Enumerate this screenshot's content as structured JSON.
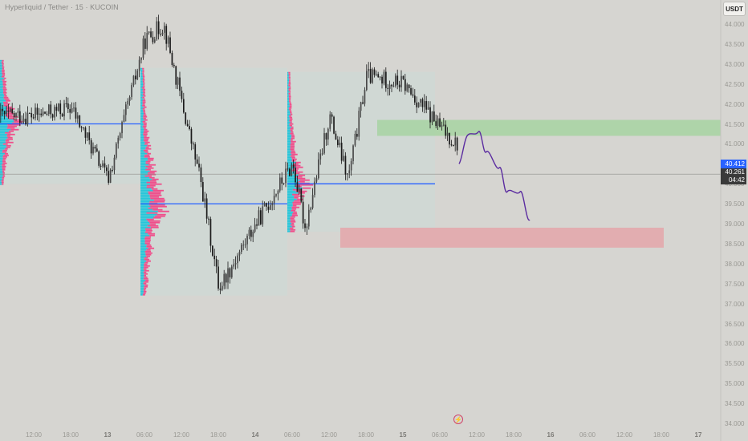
{
  "header": {
    "title": "Hyperliquid / Tether · 15 · KUCOIN",
    "currency_button": "USDT"
  },
  "price_axis": [
    "44.000",
    "43.500",
    "43.000",
    "42.500",
    "42.000",
    "41.500",
    "41.000",
    "40.500",
    "40.000",
    "39.500",
    "39.000",
    "38.500",
    "38.000",
    "37.500",
    "37.000",
    "36.500",
    "36.000",
    "35.500",
    "35.000",
    "34.500",
    "34.000"
  ],
  "price_badges": {
    "last_price": "40.412",
    "current_price": "40.261",
    "countdown": "04:42"
  },
  "time_axis": [
    {
      "label": "12:00",
      "bold": false
    },
    {
      "label": "18:00",
      "bold": false
    },
    {
      "label": "13",
      "bold": true
    },
    {
      "label": "06:00",
      "bold": false
    },
    {
      "label": "12:00",
      "bold": false
    },
    {
      "label": "18:00",
      "bold": false
    },
    {
      "label": "14",
      "bold": true
    },
    {
      "label": "06:00",
      "bold": false
    },
    {
      "label": "12:00",
      "bold": false
    },
    {
      "label": "18:00",
      "bold": false
    },
    {
      "label": "15",
      "bold": true
    },
    {
      "label": "06:00",
      "bold": false
    },
    {
      "label": "12:00",
      "bold": false
    },
    {
      "label": "18:00",
      "bold": false
    },
    {
      "label": "16",
      "bold": true
    },
    {
      "label": "06:00",
      "bold": false
    },
    {
      "label": "12:00",
      "bold": false
    },
    {
      "label": "18:00",
      "bold": false
    },
    {
      "label": "17",
      "bold": true
    }
  ],
  "colors": {
    "background": "#d6d5d1",
    "candle": "#1c1c1c",
    "poc_line": "#2962ff",
    "profile_up": "#26c6da",
    "profile_down": "#ef4f8b",
    "value_area": "#cfd8d5",
    "supply_zone": "#a7d3a2",
    "demand_zone": "#e3a9ac",
    "projection": "#5b2ca0"
  },
  "chart_data": {
    "type": "candlestick",
    "symbol": "Hyperliquid / Tether",
    "interval": "15",
    "exchange": "KUCOIN",
    "quote": "USDT",
    "ylim": [
      34.0,
      44.0
    ],
    "last_price": 40.412,
    "current_price": 40.261,
    "path": [
      {
        "t": "12 06:00",
        "p": 41.7
      },
      {
        "t": "12 12:00",
        "p": 41.9
      },
      {
        "t": "12 18:00",
        "p": 40.1
      },
      {
        "t": "13 00:00",
        "p": 43.6
      },
      {
        "t": "13 03:00",
        "p": 44.0
      },
      {
        "t": "13 06:00",
        "p": 42.0
      },
      {
        "t": "13 09:00",
        "p": 40.1
      },
      {
        "t": "13 12:00",
        "p": 37.4
      },
      {
        "t": "13 18:00",
        "p": 39.0
      },
      {
        "t": "14 00:00",
        "p": 40.5
      },
      {
        "t": "14 02:00",
        "p": 38.9
      },
      {
        "t": "14 06:00",
        "p": 41.7
      },
      {
        "t": "14 09:00",
        "p": 40.1
      },
      {
        "t": "14 12:00",
        "p": 42.7
      },
      {
        "t": "14 18:00",
        "p": 42.5
      },
      {
        "t": "15 00:00",
        "p": 41.4
      },
      {
        "t": "15 06:00",
        "p": 40.5
      },
      {
        "t": "15 09:00",
        "p": 38.9
      },
      {
        "t": "15 12:00",
        "p": 40.0
      },
      {
        "t": "15 18:00",
        "p": 40.4
      }
    ],
    "volume_profiles": [
      {
        "session": "12",
        "high": 43.1,
        "low": 40.0,
        "poc": 41.5
      },
      {
        "session": "13",
        "high": 42.9,
        "low": 37.2,
        "poc": 39.5
      },
      {
        "session": "14",
        "high": 42.8,
        "low": 38.8,
        "poc": 40.0
      }
    ],
    "zones": [
      {
        "type": "supply",
        "low": 41.2,
        "high": 41.6
      },
      {
        "type": "demand",
        "low": 38.4,
        "high": 38.9
      }
    ],
    "projection": [
      40.5,
      41.2,
      41.3,
      40.8,
      40.4,
      39.8,
      39.8,
      39.1
    ]
  }
}
